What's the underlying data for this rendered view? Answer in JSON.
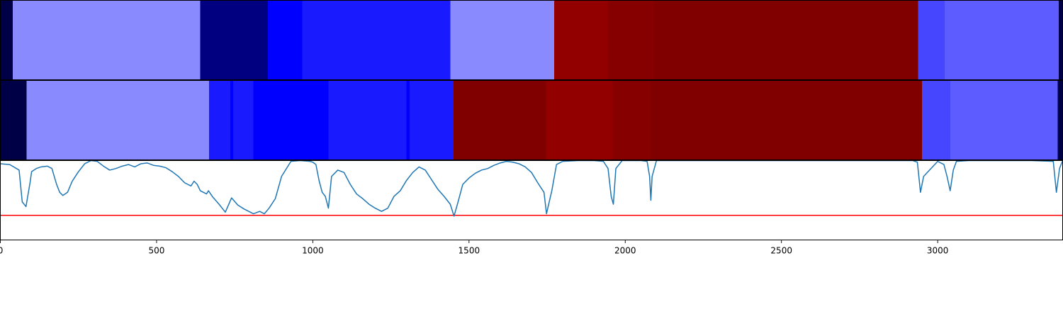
{
  "chart_data": [
    {
      "type": "heatmap",
      "title": "",
      "xlim": [
        0,
        3400
      ],
      "segments": [
        {
          "start": 0,
          "end": 40,
          "color": "#000046"
        },
        {
          "start": 40,
          "end": 640,
          "color": "#8a8aff"
        },
        {
          "start": 640,
          "end": 856,
          "color": "#000080"
        },
        {
          "start": 856,
          "end": 966,
          "color": "#0000ff"
        },
        {
          "start": 966,
          "end": 1440,
          "color": "#1a1aff"
        },
        {
          "start": 1440,
          "end": 1773,
          "color": "#8a8aff"
        },
        {
          "start": 1773,
          "end": 1944,
          "color": "#920000"
        },
        {
          "start": 1944,
          "end": 2092,
          "color": "#860000"
        },
        {
          "start": 2092,
          "end": 2937,
          "color": "#800000"
        },
        {
          "start": 2937,
          "end": 3022,
          "color": "#4646ff"
        },
        {
          "start": 3022,
          "end": 3388,
          "color": "#5c5cff"
        },
        {
          "start": 3388,
          "end": 3400,
          "color": "#000046"
        }
      ]
    },
    {
      "type": "heatmap",
      "title": "",
      "xlim": [
        0,
        3400
      ],
      "segments": [
        {
          "start": 0,
          "end": 84,
          "color": "#000046"
        },
        {
          "start": 84,
          "end": 668,
          "color": "#8a8aff"
        },
        {
          "start": 668,
          "end": 736,
          "color": "#1a1aff"
        },
        {
          "start": 736,
          "end": 745,
          "color": "#0000ff"
        },
        {
          "start": 745,
          "end": 810,
          "color": "#1a1aff"
        },
        {
          "start": 810,
          "end": 1050,
          "color": "#0000ff"
        },
        {
          "start": 1050,
          "end": 1300,
          "color": "#1a1aff"
        },
        {
          "start": 1300,
          "end": 1310,
          "color": "#0000ff"
        },
        {
          "start": 1310,
          "end": 1450,
          "color": "#1a1aff"
        },
        {
          "start": 1450,
          "end": 1747,
          "color": "#800000"
        },
        {
          "start": 1747,
          "end": 1960,
          "color": "#920000"
        },
        {
          "start": 1960,
          "end": 2082,
          "color": "#860000"
        },
        {
          "start": 2082,
          "end": 2950,
          "color": "#800000"
        },
        {
          "start": 2950,
          "end": 3040,
          "color": "#4646ff"
        },
        {
          "start": 3040,
          "end": 3384,
          "color": "#5c5cff"
        },
        {
          "start": 3384,
          "end": 3400,
          "color": "#000046"
        }
      ]
    },
    {
      "type": "line",
      "title": "",
      "xlabel": "",
      "ylabel": "",
      "xlim": [
        0,
        3400
      ],
      "ylim": [
        0,
        1
      ],
      "xticks": [
        0,
        500,
        1000,
        1500,
        2000,
        2500,
        3000
      ],
      "line_color": "#1f77b4",
      "threshold": {
        "value": 0.31,
        "color": "#ff0000"
      },
      "x": [
        0,
        30,
        60,
        70,
        82,
        95,
        100,
        115,
        130,
        150,
        165,
        180,
        190,
        200,
        215,
        230,
        250,
        270,
        290,
        310,
        330,
        350,
        370,
        390,
        410,
        430,
        450,
        470,
        490,
        510,
        530,
        550,
        570,
        590,
        610,
        620,
        630,
        640,
        660,
        666,
        680,
        700,
        720,
        740,
        760,
        780,
        800,
        810,
        830,
        845,
        860,
        880,
        900,
        930,
        960,
        990,
        1000,
        1010,
        1020,
        1030,
        1040,
        1050,
        1060,
        1080,
        1100,
        1120,
        1140,
        1160,
        1180,
        1200,
        1220,
        1240,
        1260,
        1280,
        1300,
        1320,
        1340,
        1360,
        1380,
        1400,
        1420,
        1440,
        1452,
        1465,
        1480,
        1500,
        1520,
        1540,
        1560,
        1580,
        1600,
        1620,
        1640,
        1660,
        1680,
        1700,
        1720,
        1740,
        1748,
        1755,
        1765,
        1780,
        1800,
        1850,
        1900,
        1930,
        1945,
        1955,
        1962,
        1970,
        1990,
        2050,
        2070,
        2078,
        2082,
        2086,
        2100,
        2200,
        2400,
        2600,
        2800,
        2920,
        2935,
        2945,
        2955,
        3000,
        3020,
        3030,
        3040,
        3050,
        3060,
        3100,
        3200,
        3300,
        3370,
        3380,
        3390,
        3400
      ],
      "y": [
        0.96,
        0.95,
        0.88,
        0.48,
        0.42,
        0.72,
        0.86,
        0.9,
        0.92,
        0.93,
        0.9,
        0.7,
        0.6,
        0.56,
        0.6,
        0.74,
        0.86,
        0.96,
        1.0,
        0.99,
        0.93,
        0.88,
        0.9,
        0.93,
        0.95,
        0.92,
        0.96,
        0.97,
        0.94,
        0.93,
        0.91,
        0.86,
        0.8,
        0.72,
        0.68,
        0.74,
        0.7,
        0.62,
        0.58,
        0.62,
        0.54,
        0.45,
        0.35,
        0.53,
        0.44,
        0.39,
        0.35,
        0.33,
        0.36,
        0.33,
        0.4,
        0.52,
        0.8,
        0.99,
        1.0,
        0.99,
        0.98,
        0.95,
        0.75,
        0.6,
        0.55,
        0.4,
        0.8,
        0.88,
        0.85,
        0.7,
        0.58,
        0.52,
        0.45,
        0.4,
        0.36,
        0.4,
        0.55,
        0.62,
        0.75,
        0.85,
        0.92,
        0.88,
        0.76,
        0.64,
        0.55,
        0.45,
        0.3,
        0.48,
        0.7,
        0.78,
        0.84,
        0.88,
        0.9,
        0.94,
        0.97,
        0.99,
        0.98,
        0.96,
        0.92,
        0.85,
        0.72,
        0.6,
        0.33,
        0.45,
        0.62,
        0.95,
        0.99,
        1.0,
        1.0,
        0.99,
        0.9,
        0.55,
        0.45,
        0.9,
        1.0,
        1.0,
        0.99,
        0.8,
        0.5,
        0.8,
        1.0,
        1.0,
        1.0,
        1.0,
        1.0,
        1.0,
        0.98,
        0.6,
        0.8,
        0.99,
        0.95,
        0.8,
        0.62,
        0.88,
        0.99,
        1.0,
        1.0,
        1.0,
        0.99,
        0.6,
        0.9,
        1.0
      ]
    }
  ]
}
